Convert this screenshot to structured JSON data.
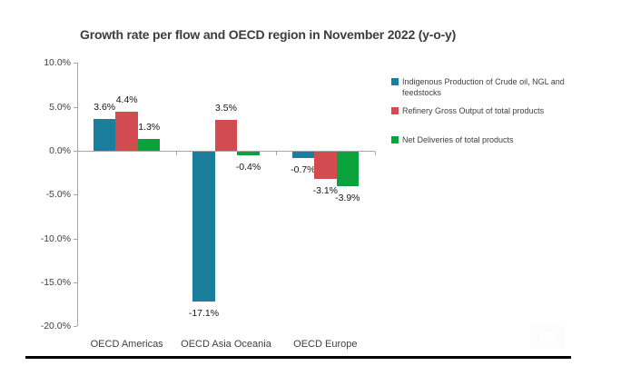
{
  "title": "Growth rate per flow and OECD region in November 2022 (y-o-y)",
  "chart_data": {
    "type": "bar",
    "title": "Growth rate per flow and OECD region in November 2022 (y-o-y)",
    "categories": [
      "OECD Americas",
      "OECD Asia Oceania",
      "OECD Europe"
    ],
    "series": [
      {
        "name": "Indigenous Production of Crude oil, NGL and feedstocks",
        "color": "#1b7e9c",
        "values": [
          3.6,
          -17.1,
          -0.7
        ],
        "labels": [
          "3.6%",
          "-17.1%",
          "-0.7%"
        ]
      },
      {
        "name": "Refinery Gross Output of total products",
        "color": "#d24b50",
        "values": [
          4.4,
          3.5,
          -3.1
        ],
        "labels": [
          "4.4%",
          "3.5%",
          "-3.1%"
        ]
      },
      {
        "name": "Net Deliveries of total products",
        "color": "#0aa23c",
        "values": [
          1.3,
          -0.4,
          -3.9
        ],
        "labels": [
          "1.3%",
          "-0.4%",
          "-3.9%"
        ]
      }
    ],
    "y_axis": {
      "min": -20,
      "max": 10,
      "tick_values": [
        10,
        5,
        0,
        -5,
        -10,
        -15,
        -20
      ],
      "tick_labels": [
        "10.0%",
        "5.0%",
        "0.0%",
        "-5.0%",
        "-10.0%",
        "-15.0%",
        "-20.0%"
      ]
    },
    "grid": false,
    "legend_position": "right",
    "colors": {
      "axis": "#a6a6a6",
      "tick_text": "#404040",
      "data_label_text": "#141414",
      "title_text": "#3d3d3d",
      "bottom_rule": "#000000"
    }
  }
}
